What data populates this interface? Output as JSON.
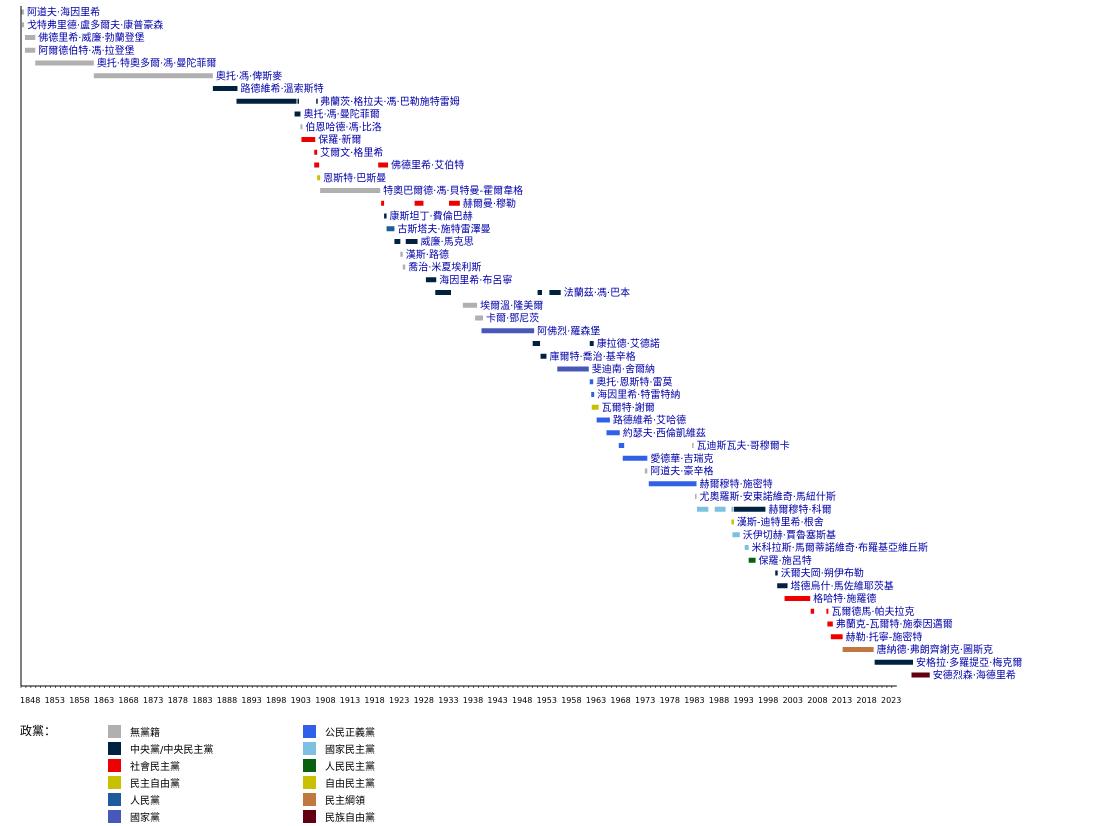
{
  "chart_data": {
    "type": "timeline",
    "title": "",
    "xlim": [
      1848,
      2026
    ],
    "x_ticks": [
      1848,
      1853,
      1858,
      1863,
      1868,
      1873,
      1878,
      1883,
      1888,
      1893,
      1898,
      1903,
      1908,
      1913,
      1918,
      1923,
      1928,
      1933,
      1938,
      1943,
      1948,
      1953,
      1958,
      1963,
      1968,
      1973,
      1978,
      1983,
      1988,
      1993,
      1998,
      2003,
      2008,
      2013,
      2018,
      2023
    ],
    "legend_title": "政黨：",
    "parties": [
      {
        "key": "none",
        "name": "無黨籍",
        "color": "#b0b0b0"
      },
      {
        "key": "centre",
        "name": "中央黨/中央民主黨",
        "color": "#002240"
      },
      {
        "key": "sp",
        "name": "社會民主黨",
        "color": "#ee0000"
      },
      {
        "key": "fdp",
        "name": "民主自由黨",
        "color": "#c8c000"
      },
      {
        "key": "peoples",
        "name": "人民黨",
        "color": "#1c5c9c"
      },
      {
        "key": "national",
        "name": "國家黨",
        "color": "#4858b8"
      },
      {
        "key": "csp",
        "name": "公民正義黨",
        "color": "#3060e8"
      },
      {
        "key": "ndp",
        "name": "國家民主黨",
        "color": "#7ec0e0"
      },
      {
        "key": "ppd",
        "name": "人民民主黨",
        "color": "#0a6010"
      },
      {
        "key": "liberal",
        "name": "自由民主黨",
        "color": "#c8c000"
      },
      {
        "key": "dn",
        "name": "民主綱領",
        "color": "#c07840"
      },
      {
        "key": "nlp",
        "name": "民族自由黨",
        "color": "#600010"
      }
    ],
    "leaders": [
      {
        "name": "阿道夫·海因里希",
        "terms": [
          {
            "start": 1848.0,
            "end": 1848.6,
            "party": "none"
          }
        ]
      },
      {
        "name": "戈特弗里德·盧多爾夫·康普豪森",
        "terms": [
          {
            "start": 1848.2,
            "end": 1848.6,
            "party": "none"
          }
        ]
      },
      {
        "name": "佛德里希·威廉·勃蘭登堡",
        "terms": [
          {
            "start": 1848.8,
            "end": 1850.9,
            "party": "none"
          }
        ]
      },
      {
        "name": "阿爾德伯特·馮·拉登堡",
        "terms": [
          {
            "start": 1848.8,
            "end": 1850.9,
            "party": "none"
          }
        ]
      },
      {
        "name": "奧托·特奧多爾·馮·曼陀菲爾",
        "terms": [
          {
            "start": 1850.9,
            "end": 1862.8,
            "party": "none"
          }
        ]
      },
      {
        "name": "奧托·馮·俾斯麥",
        "terms": [
          {
            "start": 1862.8,
            "end": 1887.0,
            "party": "none"
          }
        ]
      },
      {
        "name": "路德維希·溫索斯特",
        "terms": [
          {
            "start": 1887.0,
            "end": 1892.0,
            "party": "centre"
          }
        ]
      },
      {
        "name": "弗蘭茨·格拉夫·馮·巴勒施特雷姆",
        "terms": [
          {
            "start": 1891.8,
            "end": 1904.0,
            "party": "centre"
          },
          {
            "start": 1904.2,
            "end": 1904.4,
            "party": "centre"
          },
          {
            "start": 1908.0,
            "end": 1908.2,
            "party": "centre"
          }
        ]
      },
      {
        "name": "奧托·馮·曼陀菲爾",
        "terms": [
          {
            "start": 1903.6,
            "end": 1904.8,
            "party": "centre"
          }
        ]
      },
      {
        "name": "伯恩哈德·馮·比洛",
        "terms": [
          {
            "start": 1904.8,
            "end": 1905.2,
            "party": "none"
          }
        ]
      },
      {
        "name": "保羅·新爾",
        "terms": [
          {
            "start": 1905.0,
            "end": 1907.8,
            "party": "sp"
          }
        ]
      },
      {
        "name": "艾爾文·格里希",
        "terms": [
          {
            "start": 1907.6,
            "end": 1908.2,
            "party": "sp"
          }
        ]
      },
      {
        "name": "佛德里希·艾伯特",
        "terms": [
          {
            "start": 1907.6,
            "end": 1908.6,
            "party": "sp"
          },
          {
            "start": 1920.6,
            "end": 1922.6,
            "party": "sp"
          }
        ]
      },
      {
        "name": "恩斯特·巴斯曼",
        "terms": [
          {
            "start": 1908.2,
            "end": 1908.8,
            "party": "fdp"
          }
        ]
      },
      {
        "name": "特奧巴爾德·馮·貝特曼-霍爾韋格",
        "terms": [
          {
            "start": 1908.8,
            "end": 1921.0,
            "party": "none"
          }
        ]
      },
      {
        "name": "赫爾曼·穆勒",
        "terms": [
          {
            "start": 1921.2,
            "end": 1921.8,
            "party": "sp"
          },
          {
            "start": 1928.0,
            "end": 1929.8,
            "party": "sp"
          },
          {
            "start": 1935.0,
            "end": 1937.2,
            "party": "sp"
          }
        ]
      },
      {
        "name": "康斯坦丁·費倫巴赫",
        "terms": [
          {
            "start": 1921.8,
            "end": 1922.3,
            "party": "centre"
          }
        ]
      },
      {
        "name": "古斯塔夫·施特雷澤曼",
        "terms": [
          {
            "start": 1922.3,
            "end": 1923.9,
            "party": "peoples"
          }
        ]
      },
      {
        "name": "威廉·馬克思",
        "terms": [
          {
            "start": 1923.9,
            "end": 1925.1,
            "party": "centre"
          },
          {
            "start": 1926.2,
            "end": 1928.6,
            "party": "centre"
          }
        ]
      },
      {
        "name": "漢斯·路德",
        "terms": [
          {
            "start": 1925.1,
            "end": 1925.6,
            "party": "none"
          }
        ]
      },
      {
        "name": "喬治·米夏埃利斯",
        "terms": [
          {
            "start": 1925.6,
            "end": 1926.1,
            "party": "none"
          }
        ]
      },
      {
        "name": "海因里希·布呂寧",
        "terms": [
          {
            "start": 1930.3,
            "end": 1932.4,
            "party": "centre"
          }
        ]
      },
      {
        "name": "法蘭茲·馮·巴本",
        "terms": [
          {
            "start": 1932.2,
            "end": 1935.4,
            "party": "centre"
          },
          {
            "start": 1953.0,
            "end": 1953.9,
            "party": "centre"
          },
          {
            "start": 1955.4,
            "end": 1957.7,
            "party": "centre"
          }
        ]
      },
      {
        "name": "埃爾溫·隆美爾",
        "terms": [
          {
            "start": 1937.8,
            "end": 1940.7,
            "party": "none"
          }
        ]
      },
      {
        "name": "卡爾·鄧尼茨",
        "terms": [
          {
            "start": 1940.3,
            "end": 1941.9,
            "party": "none"
          }
        ]
      },
      {
        "name": "阿佛烈·羅森堡",
        "terms": [
          {
            "start": 1941.6,
            "end": 1952.3,
            "party": "national"
          }
        ]
      },
      {
        "name": "康拉德·艾德諾",
        "terms": [
          {
            "start": 1952.0,
            "end": 1953.5,
            "party": "centre"
          },
          {
            "start": 1963.6,
            "end": 1964.4,
            "party": "centre"
          }
        ]
      },
      {
        "name": "庫爾特·喬治·基辛格",
        "terms": [
          {
            "start": 1953.6,
            "end": 1954.8,
            "party": "centre"
          }
        ]
      },
      {
        "name": "斐迪南·舍爾納",
        "terms": [
          {
            "start": 1957.0,
            "end": 1963.4,
            "party": "national"
          }
        ]
      },
      {
        "name": "奧托·恩斯特·雷莫",
        "terms": [
          {
            "start": 1963.6,
            "end": 1964.3,
            "party": "csp"
          }
        ]
      },
      {
        "name": "海因里希·特雷特納",
        "terms": [
          {
            "start": 1963.9,
            "end": 1964.5,
            "party": "csp"
          }
        ]
      },
      {
        "name": "瓦爾特·謝爾",
        "terms": [
          {
            "start": 1964.0,
            "end": 1965.4,
            "party": "fdp"
          }
        ]
      },
      {
        "name": "路德維希·艾哈德",
        "terms": [
          {
            "start": 1965.0,
            "end": 1967.7,
            "party": "csp"
          }
        ]
      },
      {
        "name": "約瑟夫·西倫凱維茲",
        "terms": [
          {
            "start": 1967.0,
            "end": 1969.7,
            "party": "csp"
          }
        ]
      },
      {
        "name": "瓦迪斯瓦夫·哥穆爾卡",
        "terms": [
          {
            "start": 1969.5,
            "end": 1970.6,
            "party": "csp"
          },
          {
            "start": 1984.4,
            "end": 1984.7,
            "party": "none"
          }
        ]
      },
      {
        "name": "愛德華·吉瑞克",
        "terms": [
          {
            "start": 1970.3,
            "end": 1975.3,
            "party": "csp"
          }
        ]
      },
      {
        "name": "阿道夫·豪辛格",
        "terms": [
          {
            "start": 1974.8,
            "end": 1975.3,
            "party": "none"
          }
        ]
      },
      {
        "name": "赫爾穆特·施密特",
        "terms": [
          {
            "start": 1975.6,
            "end": 1985.3,
            "party": "csp"
          }
        ]
      },
      {
        "name": "尤奧羅斯·安東諾維奇·馬紐什斯",
        "terms": [
          {
            "start": 1985.0,
            "end": 1985.3,
            "party": "none"
          }
        ]
      },
      {
        "name": "赫爾穆特·科爾",
        "terms": [
          {
            "start": 1985.4,
            "end": 1987.7,
            "party": "ndp"
          },
          {
            "start": 1989.0,
            "end": 1991.2,
            "party": "ndp"
          },
          {
            "start": 1992.4,
            "end": 1992.8,
            "party": "ndp"
          },
          {
            "start": 1992.9,
            "end": 1999.3,
            "party": "centre"
          }
        ]
      },
      {
        "name": "漢斯-迪特里希·根舍",
        "terms": [
          {
            "start": 1992.4,
            "end": 1992.9,
            "party": "fdp"
          }
        ]
      },
      {
        "name": "沃伊切赫·賈魯塞斯基",
        "terms": [
          {
            "start": 1992.6,
            "end": 1994.1,
            "party": "ndp"
          }
        ]
      },
      {
        "name": "米科拉斯·馬爾蒂諾維奇·布羅基亞維丘斯",
        "terms": [
          {
            "start": 1995.1,
            "end": 1995.9,
            "party": "ndp"
          }
        ]
      },
      {
        "name": "保羅·施呂特",
        "terms": [
          {
            "start": 1995.9,
            "end": 1997.3,
            "party": "ppd"
          }
        ]
      },
      {
        "name": "沃爾夫岡·朔伊布勒",
        "terms": [
          {
            "start": 2001.3,
            "end": 2001.8,
            "party": "centre"
          }
        ]
      },
      {
        "name": "塔德烏什·馬佐維耶茨基",
        "terms": [
          {
            "start": 2001.7,
            "end": 2003.8,
            "party": "centre"
          }
        ]
      },
      {
        "name": "格哈特·施羅德",
        "terms": [
          {
            "start": 2003.2,
            "end": 2008.4,
            "party": "sp"
          }
        ]
      },
      {
        "name": "瓦爾德馬·帕夫拉克",
        "terms": [
          {
            "start": 2008.5,
            "end": 2009.2,
            "party": "sp"
          },
          {
            "start": 2011.7,
            "end": 2012.1,
            "party": "sp"
          }
        ]
      },
      {
        "name": "弗蘭克-瓦爾特·施泰因邁爾",
        "terms": [
          {
            "start": 2011.9,
            "end": 2013.0,
            "party": "sp"
          }
        ]
      },
      {
        "name": "赫勒·托寧-施密特",
        "terms": [
          {
            "start": 2012.6,
            "end": 2015.0,
            "party": "sp"
          }
        ]
      },
      {
        "name": "唐納德·弗朗齊謝克·圖斯克",
        "terms": [
          {
            "start": 2015.0,
            "end": 2021.3,
            "party": "dn"
          }
        ]
      },
      {
        "name": "安格拉·多羅提亞·梅克爾",
        "terms": [
          {
            "start": 2021.5,
            "end": 2029.3,
            "party": "centre"
          }
        ]
      },
      {
        "name": "安德烈森·海德里希",
        "terms": [
          {
            "start": 2029.0,
            "end": 2032.7,
            "party": "nlp"
          }
        ]
      }
    ]
  }
}
